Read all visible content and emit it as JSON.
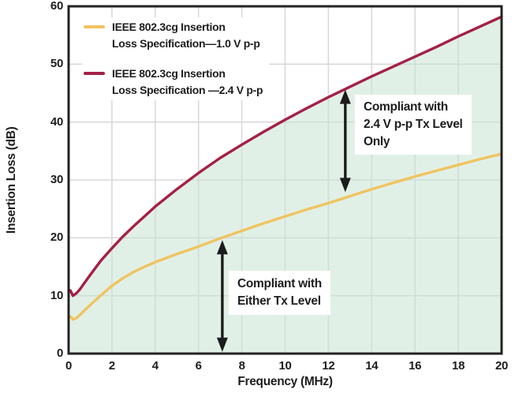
{
  "chart_data": {
    "type": "line",
    "title": "",
    "xlabel": "Frequency (MHz)",
    "ylabel": "Insertion Loss (dB)",
    "xlim": [
      0,
      20
    ],
    "ylim": [
      0,
      60
    ],
    "x_ticks": [
      0,
      2,
      4,
      6,
      8,
      10,
      12,
      14,
      16,
      18,
      20
    ],
    "y_ticks": [
      0,
      10,
      20,
      30,
      40,
      50,
      60
    ],
    "grid": true,
    "legend_position": "top-left-inside",
    "series": [
      {
        "name": "IEEE 802.3cg Insertion Loss Specification—1.0 V p-p",
        "label_lines": [
          "IEEE 802.3cg Insertion",
          "Loss Specification—1.0 V p-p"
        ],
        "color": "#F0C460",
        "points": [
          [
            0.08,
            6.4
          ],
          [
            0.2,
            5.9
          ],
          [
            0.35,
            6.1
          ],
          [
            0.5,
            6.6
          ],
          [
            0.75,
            7.5
          ],
          [
            1,
            8.4
          ],
          [
            1.5,
            10.1
          ],
          [
            2,
            11.7
          ],
          [
            2.5,
            13.0
          ],
          [
            3,
            14.1
          ],
          [
            3.5,
            15.0
          ],
          [
            4,
            15.8
          ],
          [
            5,
            17.2
          ],
          [
            6,
            18.5
          ],
          [
            7,
            19.9
          ],
          [
            8,
            21.2
          ],
          [
            9,
            22.5
          ],
          [
            10,
            23.7
          ],
          [
            11,
            24.9
          ],
          [
            12,
            26.0
          ],
          [
            13,
            27.2
          ],
          [
            14,
            28.4
          ],
          [
            15,
            29.5
          ],
          [
            16,
            30.6
          ],
          [
            17,
            31.6
          ],
          [
            18,
            32.6
          ],
          [
            19,
            33.6
          ],
          [
            20,
            34.5
          ]
        ]
      },
      {
        "name": "IEEE 802.3cg Insertion Loss Specification —2.4 V p-p",
        "label_lines": [
          "IEEE 802.3cg Insertion",
          "Loss Specification —2.4 V p-p"
        ],
        "color": "#A42047",
        "fill_below": true,
        "points": [
          [
            0.08,
            10.9
          ],
          [
            0.2,
            10.0
          ],
          [
            0.35,
            10.4
          ],
          [
            0.5,
            11.0
          ],
          [
            0.75,
            12.3
          ],
          [
            1,
            13.6
          ],
          [
            1.5,
            16.1
          ],
          [
            2,
            18.2
          ],
          [
            2.5,
            20.2
          ],
          [
            3,
            22.0
          ],
          [
            3.5,
            23.7
          ],
          [
            4,
            25.4
          ],
          [
            5,
            28.4
          ],
          [
            6,
            31.2
          ],
          [
            7,
            33.8
          ],
          [
            8,
            36.1
          ],
          [
            9,
            38.3
          ],
          [
            10,
            40.4
          ],
          [
            11,
            42.4
          ],
          [
            12,
            44.3
          ],
          [
            13,
            46.1
          ],
          [
            14,
            47.9
          ],
          [
            15,
            49.6
          ],
          [
            16,
            51.3
          ],
          [
            17,
            53.0
          ],
          [
            18,
            54.8
          ],
          [
            19,
            56.5
          ],
          [
            20,
            58.2
          ]
        ]
      }
    ],
    "annotations": [
      {
        "text_lines": [
          "Compliant with",
          "Either Tx Level"
        ],
        "arrow": {
          "x": 7.1,
          "y_from": 0.3,
          "y_to": 19.6,
          "style": "double-headed-vertical"
        }
      },
      {
        "text_lines": [
          "Compliant with",
          "2.4 V p-p Tx Level",
          "Only"
        ],
        "arrow": {
          "x": 12.78,
          "y_from": 27.9,
          "y_to": 45.6,
          "style": "double-headed-vertical"
        }
      }
    ],
    "colors": {
      "curve_1v0": "#F0C460",
      "curve_2v4": "#A42047",
      "fill_below_red": "rgba(200,228,211,0.55)",
      "grid": "#D9D9D9",
      "axis": "#232323",
      "arrow": "#1C1C1C",
      "annotation_bg": "#FFFFFF",
      "text": "#1D1D1F"
    }
  }
}
